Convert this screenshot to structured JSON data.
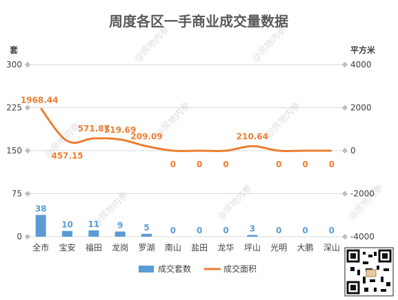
{
  "watermark": "@房地内参",
  "colors": {
    "bar": "#5B9BD5",
    "line": "#ED7D31",
    "grid": "#D9D9D9",
    "text": "#404040",
    "title": "#595959"
  },
  "chart_data": {
    "type": "bar",
    "title": "周度各区一手商业成交量数据",
    "categories": [
      "全市",
      "宝安",
      "福田",
      "龙岗",
      "罗湖",
      "南山",
      "盐田",
      "龙华",
      "坪山",
      "光明",
      "大鹏",
      "深山"
    ],
    "series": [
      {
        "name": "成交套数",
        "type": "bar",
        "axis": "left",
        "values": [
          38,
          10,
          11,
          9,
          5,
          0,
          0,
          0,
          3,
          0,
          0,
          0
        ]
      },
      {
        "name": "成交面积",
        "type": "line",
        "axis": "right",
        "values": [
          1968.44,
          457.15,
          571.87,
          519.69,
          209.09,
          0,
          0,
          0,
          210.64,
          0,
          0,
          0
        ]
      }
    ],
    "y_left": {
      "label": "套",
      "ticks": [
        0,
        75,
        150,
        225,
        300
      ],
      "range": [
        0,
        300
      ]
    },
    "y_right": {
      "label": "平方米",
      "ticks": [
        -4000,
        -2000,
        0,
        2000,
        4000
      ],
      "range": [
        -4000,
        4000
      ]
    },
    "grid": true,
    "legend_position": "bottom"
  }
}
